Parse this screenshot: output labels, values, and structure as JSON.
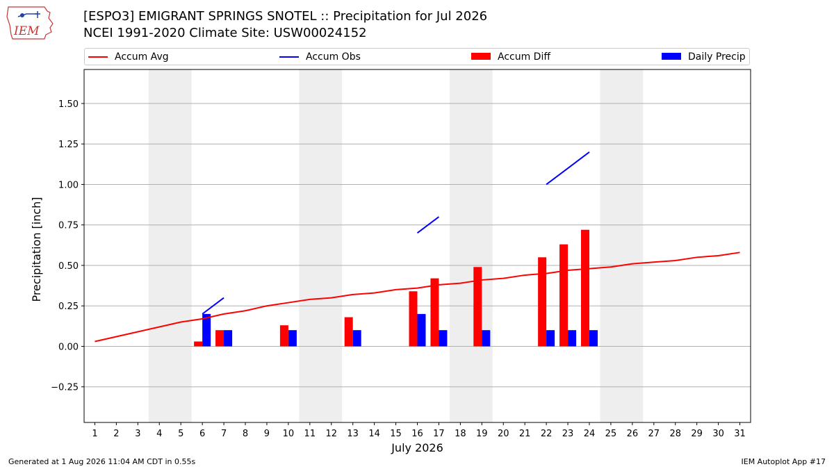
{
  "header": {
    "logo_text": "IEM",
    "title_line1": "[ESPO3] EMIGRANT SPRINGS SNOTEL :: Precipitation for Jul 2026",
    "title_line2": "NCEI 1991-2020 Climate Site: USW00024152"
  },
  "legend": {
    "accum_avg": "Accum Avg",
    "accum_obs": "Accum Obs",
    "accum_diff": "Accum Diff",
    "daily_precip": "Daily Precip"
  },
  "colors": {
    "avg": "#ff0000",
    "obs": "#0000ff",
    "diff": "#ff0000",
    "daily": "#0000ff",
    "weekend": "#eeeeee",
    "grid": "#b0b0b0"
  },
  "footer": {
    "left": "Generated at 1 Aug 2026 11:04 AM CDT in 0.55s",
    "right": "IEM Autoplot App #17"
  },
  "chart_data": {
    "type": "bar",
    "xlabel": "July 2026",
    "ylabel": "Precipitation [inch]",
    "xlim": [
      0.5,
      31.5
    ],
    "ylim": [
      -0.47,
      1.71
    ],
    "yticks": [
      -0.25,
      0.0,
      0.25,
      0.5,
      0.75,
      1.0,
      1.25,
      1.5
    ],
    "ytick_labels": [
      "−0.25",
      "0.00",
      "0.25",
      "0.50",
      "0.75",
      "1.00",
      "1.25",
      "1.50"
    ],
    "days": [
      1,
      2,
      3,
      4,
      5,
      6,
      7,
      8,
      9,
      10,
      11,
      12,
      13,
      14,
      15,
      16,
      17,
      18,
      19,
      20,
      21,
      22,
      23,
      24,
      25,
      26,
      27,
      28,
      29,
      30,
      31
    ],
    "weekend_spans": [
      [
        3.5,
        5.5
      ],
      [
        10.5,
        12.5
      ],
      [
        17.5,
        19.5
      ],
      [
        24.5,
        26.5
      ]
    ],
    "grid": "horizontal",
    "legend_position": "top",
    "accum_avg": [
      0.03,
      0.06,
      0.09,
      0.12,
      0.15,
      0.17,
      0.2,
      0.22,
      0.25,
      0.27,
      0.29,
      0.3,
      0.32,
      0.33,
      0.35,
      0.36,
      0.38,
      0.39,
      0.41,
      0.42,
      0.44,
      0.45,
      0.47,
      0.48,
      0.49,
      0.51,
      0.52,
      0.53,
      0.55,
      0.56,
      0.58
    ],
    "accum_obs_segments": [
      [
        [
          6,
          0.2
        ],
        [
          7,
          0.3
        ]
      ],
      [
        [
          16,
          0.7
        ],
        [
          17,
          0.8
        ]
      ],
      [
        [
          22,
          1.0
        ],
        [
          23,
          1.1
        ],
        [
          24,
          1.2
        ]
      ]
    ],
    "accum_diff": [
      {
        "day": 6,
        "value": 0.03
      },
      {
        "day": 7,
        "value": 0.1
      },
      {
        "day": 10,
        "value": 0.13
      },
      {
        "day": 13,
        "value": 0.18
      },
      {
        "day": 16,
        "value": 0.34
      },
      {
        "day": 17,
        "value": 0.42
      },
      {
        "day": 19,
        "value": 0.49
      },
      {
        "day": 22,
        "value": 0.55
      },
      {
        "day": 23,
        "value": 0.63
      },
      {
        "day": 24,
        "value": 0.72
      }
    ],
    "daily_precip": [
      {
        "day": 6,
        "value": 0.2
      },
      {
        "day": 7,
        "value": 0.1
      },
      {
        "day": 10,
        "value": 0.1
      },
      {
        "day": 13,
        "value": 0.1
      },
      {
        "day": 16,
        "value": 0.2
      },
      {
        "day": 17,
        "value": 0.1
      },
      {
        "day": 19,
        "value": 0.1
      },
      {
        "day": 22,
        "value": 0.1
      },
      {
        "day": 23,
        "value": 0.1
      },
      {
        "day": 24,
        "value": 0.1
      }
    ]
  }
}
